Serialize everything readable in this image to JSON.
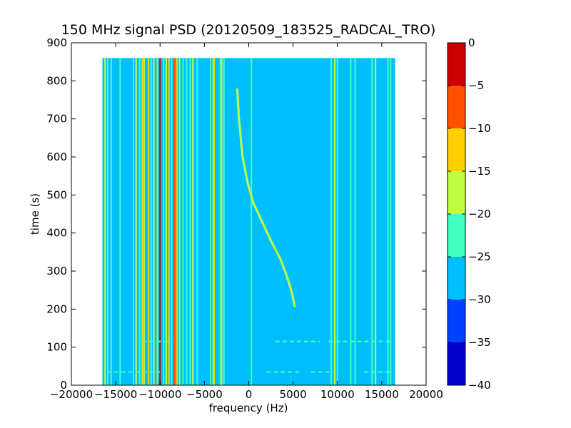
{
  "chart_data": {
    "type": "heatmap",
    "title": "150 MHz signal PSD (20120509_183525_RADCAL_TRO)",
    "xlabel": "frequency (Hz)",
    "ylabel": "time (s)",
    "xlim": [
      -20000,
      20000
    ],
    "ylim": [
      0,
      900
    ],
    "xticks": [
      -20000,
      -15000,
      -10000,
      -5000,
      0,
      5000,
      10000,
      15000,
      20000
    ],
    "xtick_labels": [
      "−20000",
      "−15000",
      "−10000",
      "−5000",
      "0",
      "5000",
      "10000",
      "15000",
      "20000"
    ],
    "yticks": [
      0,
      100,
      200,
      300,
      400,
      500,
      600,
      700,
      800,
      900
    ],
    "ytick_labels": [
      "0",
      "100",
      "200",
      "300",
      "400",
      "500",
      "600",
      "700",
      "800",
      "900"
    ],
    "data_extent": {
      "x": [
        -16500,
        16500
      ],
      "y": [
        0,
        860
      ]
    },
    "background_level": -27.5,
    "background_color": "#00bfff",
    "colorbar": {
      "levels": [
        -40,
        -35,
        -30,
        -25,
        -20,
        -15,
        -10,
        -5,
        0
      ],
      "tick_labels": [
        "−40",
        "−35",
        "−30",
        "−25",
        "−20",
        "−15",
        "−10",
        "−5",
        "0"
      ],
      "colors": [
        "#0000cc",
        "#0040ff",
        "#00bfff",
        "#40ffbf",
        "#bfff40",
        "#ffcf00",
        "#ff5000",
        "#cc0000"
      ]
    },
    "vertical_lines": [
      {
        "f": -16200,
        "level": -17.5
      },
      {
        "f": -15900,
        "level": -22.5
      },
      {
        "f": -15500,
        "level": -22.5
      },
      {
        "f": -14500,
        "level": -22.5
      },
      {
        "f": -13000,
        "level": -22.5
      },
      {
        "f": -12700,
        "level": -17.5
      },
      {
        "f": -12300,
        "level": -22.5
      },
      {
        "f": -12000,
        "level": -12.5
      },
      {
        "f": -11800,
        "level": -17.5
      },
      {
        "f": -11300,
        "level": -12.5
      },
      {
        "f": -11000,
        "level": -22.5
      },
      {
        "f": -10700,
        "level": -17.5
      },
      {
        "f": -10300,
        "level": -12.5
      },
      {
        "f": -10000,
        "level": -2.5
      },
      {
        "f": -9600,
        "level": -22.5
      },
      {
        "f": -9300,
        "level": -17.5
      },
      {
        "f": -9000,
        "level": -12.5
      },
      {
        "f": -8700,
        "level": -22.5
      },
      {
        "f": -8400,
        "level": -7.5
      },
      {
        "f": -8100,
        "level": -12.5
      },
      {
        "f": -7800,
        "level": -17.5
      },
      {
        "f": -7400,
        "level": -22.5
      },
      {
        "f": -7000,
        "level": -22.5
      },
      {
        "f": -6600,
        "level": -22.5
      },
      {
        "f": -6300,
        "level": -17.5
      },
      {
        "f": -5800,
        "level": -22.5
      },
      {
        "f": -4300,
        "level": -22.5
      },
      {
        "f": -4000,
        "level": -17.5
      },
      {
        "f": -3900,
        "level": -12.5
      },
      {
        "f": -3200,
        "level": -22.5
      },
      {
        "f": -3050,
        "level": -17.5
      },
      {
        "f": -2800,
        "level": -22.5
      },
      {
        "f": 300,
        "level": -22.5
      },
      {
        "f": 9300,
        "level": -22.5
      },
      {
        "f": 9700,
        "level": -17.5
      },
      {
        "f": 10000,
        "level": -22.5
      },
      {
        "f": 11500,
        "level": -22.5
      },
      {
        "f": 12000,
        "level": -22.5
      },
      {
        "f": 13900,
        "level": -22.5
      },
      {
        "f": 14300,
        "level": -17.5
      },
      {
        "f": 15700,
        "level": -22.5
      },
      {
        "f": 16000,
        "level": -22.5
      }
    ],
    "sweep_trace": {
      "level": -17.5,
      "points": [
        [
          -1300,
          780
        ],
        [
          -1100,
          700
        ],
        [
          -700,
          600
        ],
        [
          -100,
          530
        ],
        [
          500,
          480
        ],
        [
          1500,
          430
        ],
        [
          2500,
          380
        ],
        [
          3600,
          330
        ],
        [
          4400,
          280
        ],
        [
          4900,
          240
        ],
        [
          5200,
          205
        ]
      ]
    },
    "horizontal_segments": [
      {
        "t": 115,
        "f": [
          3000,
          8000
        ],
        "level": -22.5
      },
      {
        "t": 115,
        "f": [
          -12000,
          -9000
        ],
        "level": -22.5
      },
      {
        "t": 115,
        "f": [
          9000,
          16000
        ],
        "level": -22.5
      },
      {
        "t": 35,
        "f": [
          -16000,
          -10000
        ],
        "level": -22.5
      },
      {
        "t": 35,
        "f": [
          2000,
          6000
        ],
        "level": -22.5
      },
      {
        "t": 35,
        "f": [
          7000,
          9500
        ],
        "level": -22.5
      },
      {
        "t": 35,
        "f": [
          13000,
          16000
        ],
        "level": -22.5
      }
    ]
  }
}
